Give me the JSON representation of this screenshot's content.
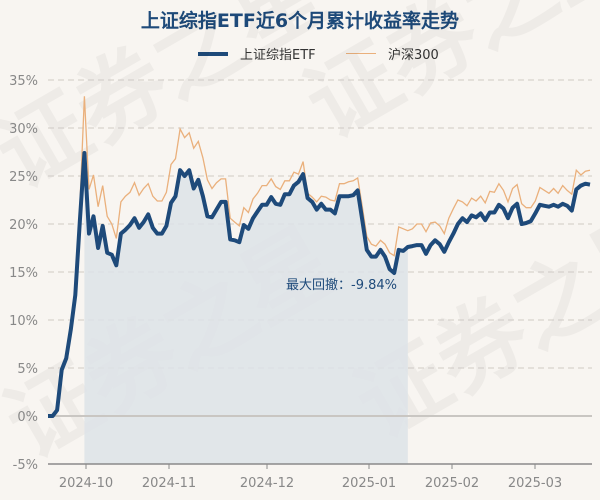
{
  "title": "上证综指ETF近6个月累计收益率走势",
  "legend": [
    {
      "name": "上证综指ETF",
      "color": "#1e4a7a"
    },
    {
      "name": "沪深300",
      "color": "#eab07c"
    }
  ],
  "annotation": "最大回撤：-9.84%",
  "watermark": "证券之星",
  "chart_data": {
    "type": "line",
    "title": "上证综指ETF近6个月累计收益率走势",
    "xlabel": "",
    "ylabel": "",
    "ylim": [
      -5,
      35
    ],
    "yticks": [
      "35%",
      "30%",
      "25%",
      "20%",
      "15%",
      "10%",
      "5%",
      "0%",
      "-5%"
    ],
    "xticks": [
      "2024-10",
      "2024-11",
      "2024-12",
      "2025-01",
      "2025-02",
      "2025-03"
    ],
    "grid": "horizontal dashed",
    "legend_position": "top",
    "max_drawdown": "-9.84%",
    "drawdown_shading": {
      "from_index": 8,
      "to_index": 79
    },
    "series": [
      {
        "name": "上证综指ETF",
        "values": [
          0,
          0,
          0.6,
          4.8,
          6,
          9,
          12.6,
          20.4,
          27.4,
          19,
          20.8,
          17.5,
          19.8,
          17,
          16.8,
          15.7,
          19,
          19.4,
          19.9,
          20.6,
          19.6,
          20.2,
          21,
          19.6,
          19,
          19,
          19.8,
          22.2,
          22.9,
          25.6,
          25,
          25.6,
          23.7,
          24.6,
          22.9,
          20.8,
          20.7,
          21.5,
          22.3,
          22.3,
          18.4,
          18.3,
          18.1,
          19.9,
          19.5,
          20.6,
          21.3,
          22,
          22,
          22.8,
          22.1,
          22,
          23.1,
          23.1,
          24,
          24.4,
          25.2,
          22.7,
          22.3,
          21.5,
          22.1,
          21.5,
          21.5,
          21.1,
          22.9,
          22.9,
          22.9,
          23,
          23.5,
          20.4,
          17.3,
          16.6,
          16.6,
          17.3,
          16.6,
          15.3,
          14.9,
          17.3,
          17.2,
          17.6,
          17.7,
          17.8,
          17.8,
          16.9,
          17.8,
          18.3,
          17.9,
          17.1,
          18.1,
          19,
          20,
          20.6,
          20.2,
          20.9,
          20.7,
          21.1,
          20.4,
          21.2,
          21.2,
          22,
          21.6,
          20.6,
          21.7,
          22.1,
          20,
          20.1,
          20.3,
          21.1,
          22,
          21.9,
          21.8,
          22,
          21.8,
          22.1,
          21.9,
          21.4,
          23.6,
          24,
          24.2,
          24.1
        ]
      },
      {
        "name": "沪深300",
        "values": [
          0,
          0,
          0.5,
          4.6,
          5.8,
          8.8,
          12.4,
          22,
          33.3,
          23.6,
          25.1,
          21.8,
          24,
          20.8,
          20,
          18.5,
          22.3,
          22.9,
          23.3,
          24.3,
          23,
          23.7,
          24.2,
          22.9,
          22.4,
          22.4,
          23.3,
          26.2,
          26.8,
          29.9,
          29,
          29.5,
          27.9,
          28.6,
          26.9,
          24.6,
          23.7,
          24.3,
          24.7,
          24.7,
          20.6,
          20.2,
          19.8,
          21.7,
          21.2,
          22.6,
          23.2,
          24,
          24,
          24.7,
          23.9,
          23.6,
          24.5,
          24.5,
          25.4,
          25.2,
          26.5,
          23.2,
          22.8,
          22.3,
          22.9,
          22.8,
          22.5,
          22.4,
          24.2,
          24.2,
          24.4,
          24.5,
          24.8,
          21.8,
          18.7,
          17.9,
          17.7,
          18.3,
          17.9,
          17,
          16.7,
          19.7,
          19.5,
          19.3,
          19.5,
          20,
          20,
          19.2,
          20.1,
          20.2,
          19.8,
          19,
          20.6,
          21.6,
          22.5,
          22.3,
          21.9,
          22.7,
          22.4,
          22.9,
          22.2,
          23.4,
          23.3,
          24.2,
          23.5,
          22.3,
          23.7,
          24.1,
          22.1,
          21.7,
          21.7,
          22.4,
          23.8,
          23.5,
          23.2,
          23.7,
          23.2,
          24,
          23.5,
          23.1,
          25.6,
          25.1,
          25.5,
          25.6
        ]
      }
    ]
  }
}
